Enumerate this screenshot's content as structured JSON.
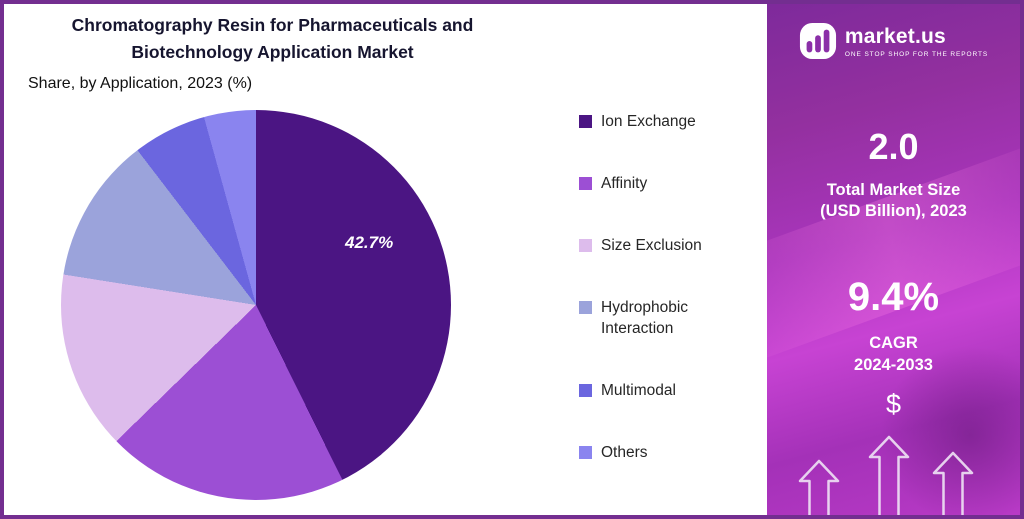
{
  "chart": {
    "title_line1": "Chromatography Resin for Pharmaceuticals and",
    "title_line2": "Biotechnology Application Market",
    "subtitle": "Share, by Application, 2023 (%)",
    "slice_label": "42.7%"
  },
  "chart_data": {
    "type": "pie",
    "title": "Chromatography Resin for Pharmaceuticals and Biotechnology Application Market",
    "subtitle": "Share, by Application, 2023 (%)",
    "categories": [
      "Ion Exchange",
      "Affinity",
      "Size Exclusion",
      "Hydrophobic Interaction",
      "Multimodal",
      "Others"
    ],
    "values": [
      42.7,
      20.0,
      14.8,
      12.1,
      6.1,
      4.3
    ],
    "colors": [
      "#4B1583",
      "#9C4FD4",
      "#DDBCEC",
      "#9BA3DB",
      "#6B66DF",
      "#8A84EF"
    ],
    "data_labels": [
      "42.7%",
      "",
      "",
      "",
      "",
      ""
    ],
    "legend_position": "right",
    "start_angle_deg": 0,
    "direction": "clockwise"
  },
  "side_panel": {
    "brand": "market.us",
    "tagline": "ONE STOP SHOP FOR THE REPORTS",
    "market_size_value": "2.0",
    "market_size_label_line1": "Total Market Size",
    "market_size_label_line2": "(USD Billion), 2023",
    "cagr_value": "9.4%",
    "cagr_label": "CAGR",
    "cagr_period": "2024-2033",
    "dollar_icon": "$"
  },
  "theme": {
    "frame_border_color": "#732E90",
    "title_color": "#16152F",
    "panel_gradient_top": "#7E2A9B",
    "panel_gradient_bottom": "#B83AC6",
    "logo_bar_color": "#8B2FA8"
  }
}
